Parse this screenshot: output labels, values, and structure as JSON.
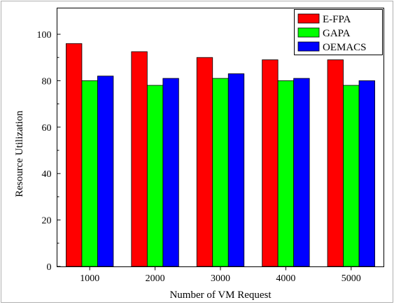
{
  "chart_data": {
    "type": "bar",
    "title": "",
    "xlabel": "Number of VM Request",
    "ylabel": "Resource Utilization",
    "categories": [
      "1000",
      "2000",
      "3000",
      "4000",
      "5000"
    ],
    "ylim": [
      0,
      100
    ],
    "yticks": [
      "0",
      "20",
      "40",
      "60",
      "80",
      "100"
    ],
    "grid": false,
    "legend_position": "top-right",
    "series": [
      {
        "name": "E-FPA",
        "color": "#ff0000",
        "values": [
          96,
          92.5,
          90,
          89,
          89
        ]
      },
      {
        "name": "GAPA",
        "color": "#00ff00",
        "values": [
          80,
          78,
          81,
          80,
          78
        ]
      },
      {
        "name": "OEMACS",
        "color": "#0000ff",
        "values": [
          82,
          81,
          83,
          81,
          80
        ]
      }
    ]
  }
}
